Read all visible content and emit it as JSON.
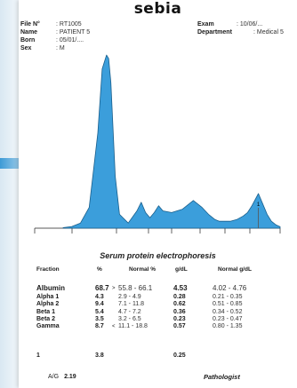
{
  "logo": "sebia",
  "header": {
    "file_label": "File N°",
    "file_value": ": RT1005",
    "name_label": "Name",
    "name_value": ": PATIENT 5",
    "born_label": "Born",
    "born_value": ": 05/01/....",
    "sex_label": "Sex",
    "sex_value": ": M",
    "exam_label": "Exam",
    "exam_value": ": 10/06/...",
    "dept_label": "Department",
    "dept_value": ": Medical 5"
  },
  "chart_data": {
    "type": "area",
    "title": "Serum protein electrophoresis",
    "x": [
      0,
      4,
      8,
      12,
      16,
      18,
      20,
      21,
      22,
      24,
      26,
      30,
      34,
      36,
      38,
      40,
      42,
      44,
      46,
      50,
      55,
      60,
      64,
      67,
      70,
      72,
      74,
      77,
      80,
      83,
      85,
      87,
      90,
      92,
      94,
      96,
      98,
      100
    ],
    "values": [
      0.3,
      1,
      3,
      12,
      55,
      92,
      100,
      98,
      84,
      30,
      8,
      3,
      10,
      15,
      9,
      6,
      9,
      13,
      10,
      9,
      11,
      16,
      12,
      8,
      5,
      4,
      4,
      4,
      5,
      7,
      9,
      13,
      20,
      14,
      8,
      4,
      2,
      0.8
    ],
    "marker": {
      "x": 90,
      "label": "1"
    },
    "colors": {
      "fill": "#3b9edb",
      "stroke": "#1a5f8c"
    }
  },
  "table": {
    "headers": {
      "fraction": "Fraction",
      "pct": "%",
      "normal_pct": "Normal %",
      "gdl": "g/dL",
      "normal_gdl": "Normal g/dL"
    },
    "rows": [
      {
        "name": "Albumin",
        "pct": "68.7",
        "flag": ">",
        "normal": "55.8 - 66.1",
        "gdl": "4.53",
        "normal_gdl": "4.02 - 4.76"
      },
      {
        "name": "Alpha 1",
        "pct": "4.3",
        "flag": "",
        "normal": "2.9 - 4.9",
        "gdl": "0.28",
        "normal_gdl": "0.21 - 0.35"
      },
      {
        "name": "Alpha 2",
        "pct": "9.4",
        "flag": "",
        "normal": "7.1 - 11.8",
        "gdl": "0.62",
        "normal_gdl": "0.51 - 0.85"
      },
      {
        "name": "Beta 1",
        "pct": "5.4",
        "flag": "",
        "normal": "4.7 - 7.2",
        "gdl": "0.36",
        "normal_gdl": "0.34 - 0.52"
      },
      {
        "name": "Beta 2",
        "pct": "3.5",
        "flag": "",
        "normal": "3.2 - 6.5",
        "gdl": "0.23",
        "normal_gdl": "0.23 - 0.47"
      },
      {
        "name": "Gamma",
        "pct": "8.7",
        "flag": "<",
        "normal": "11.1 - 18.8",
        "gdl": "0.57",
        "normal_gdl": "0.80 - 1.35"
      }
    ],
    "extra": {
      "name": "1",
      "pct": "3.8",
      "gdl": "0.25"
    }
  },
  "ag": {
    "label": "A/G",
    "value": "2.19"
  },
  "pathologist": "Pathologist"
}
